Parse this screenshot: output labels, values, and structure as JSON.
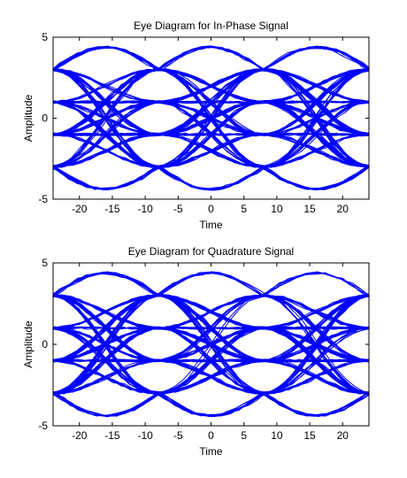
{
  "chart_data": [
    {
      "type": "line",
      "title": "Eye Diagram for In-Phase Signal",
      "xlabel": "Time",
      "ylabel": "Amplitude",
      "xlim": [
        -24,
        24
      ],
      "ylim": [
        -5,
        5
      ],
      "xticks": [
        -20,
        -15,
        -10,
        -5,
        0,
        5,
        10,
        15,
        20
      ],
      "yticks": [
        -5,
        0,
        5
      ],
      "grid": false,
      "series_color": "#0000ff",
      "symbol_period": 16,
      "levels": [
        -3,
        -1,
        1,
        3
      ],
      "peak_amplitude": 4.4,
      "eye_centers": [
        -16,
        0,
        16
      ]
    },
    {
      "type": "line",
      "title": "Eye Diagram for Quadrature Signal",
      "xlabel": "Time",
      "ylabel": "Amplitude",
      "xlim": [
        -24,
        24
      ],
      "ylim": [
        -5,
        5
      ],
      "xticks": [
        -20,
        -15,
        -10,
        -5,
        0,
        5,
        10,
        15,
        20
      ],
      "yticks": [
        -5,
        0,
        5
      ],
      "grid": false,
      "series_color": "#0000ff",
      "symbol_period": 16,
      "levels": [
        -3,
        -1,
        1,
        3
      ],
      "peak_amplitude": 4.4,
      "eye_centers": [
        -16,
        0,
        16
      ]
    }
  ]
}
